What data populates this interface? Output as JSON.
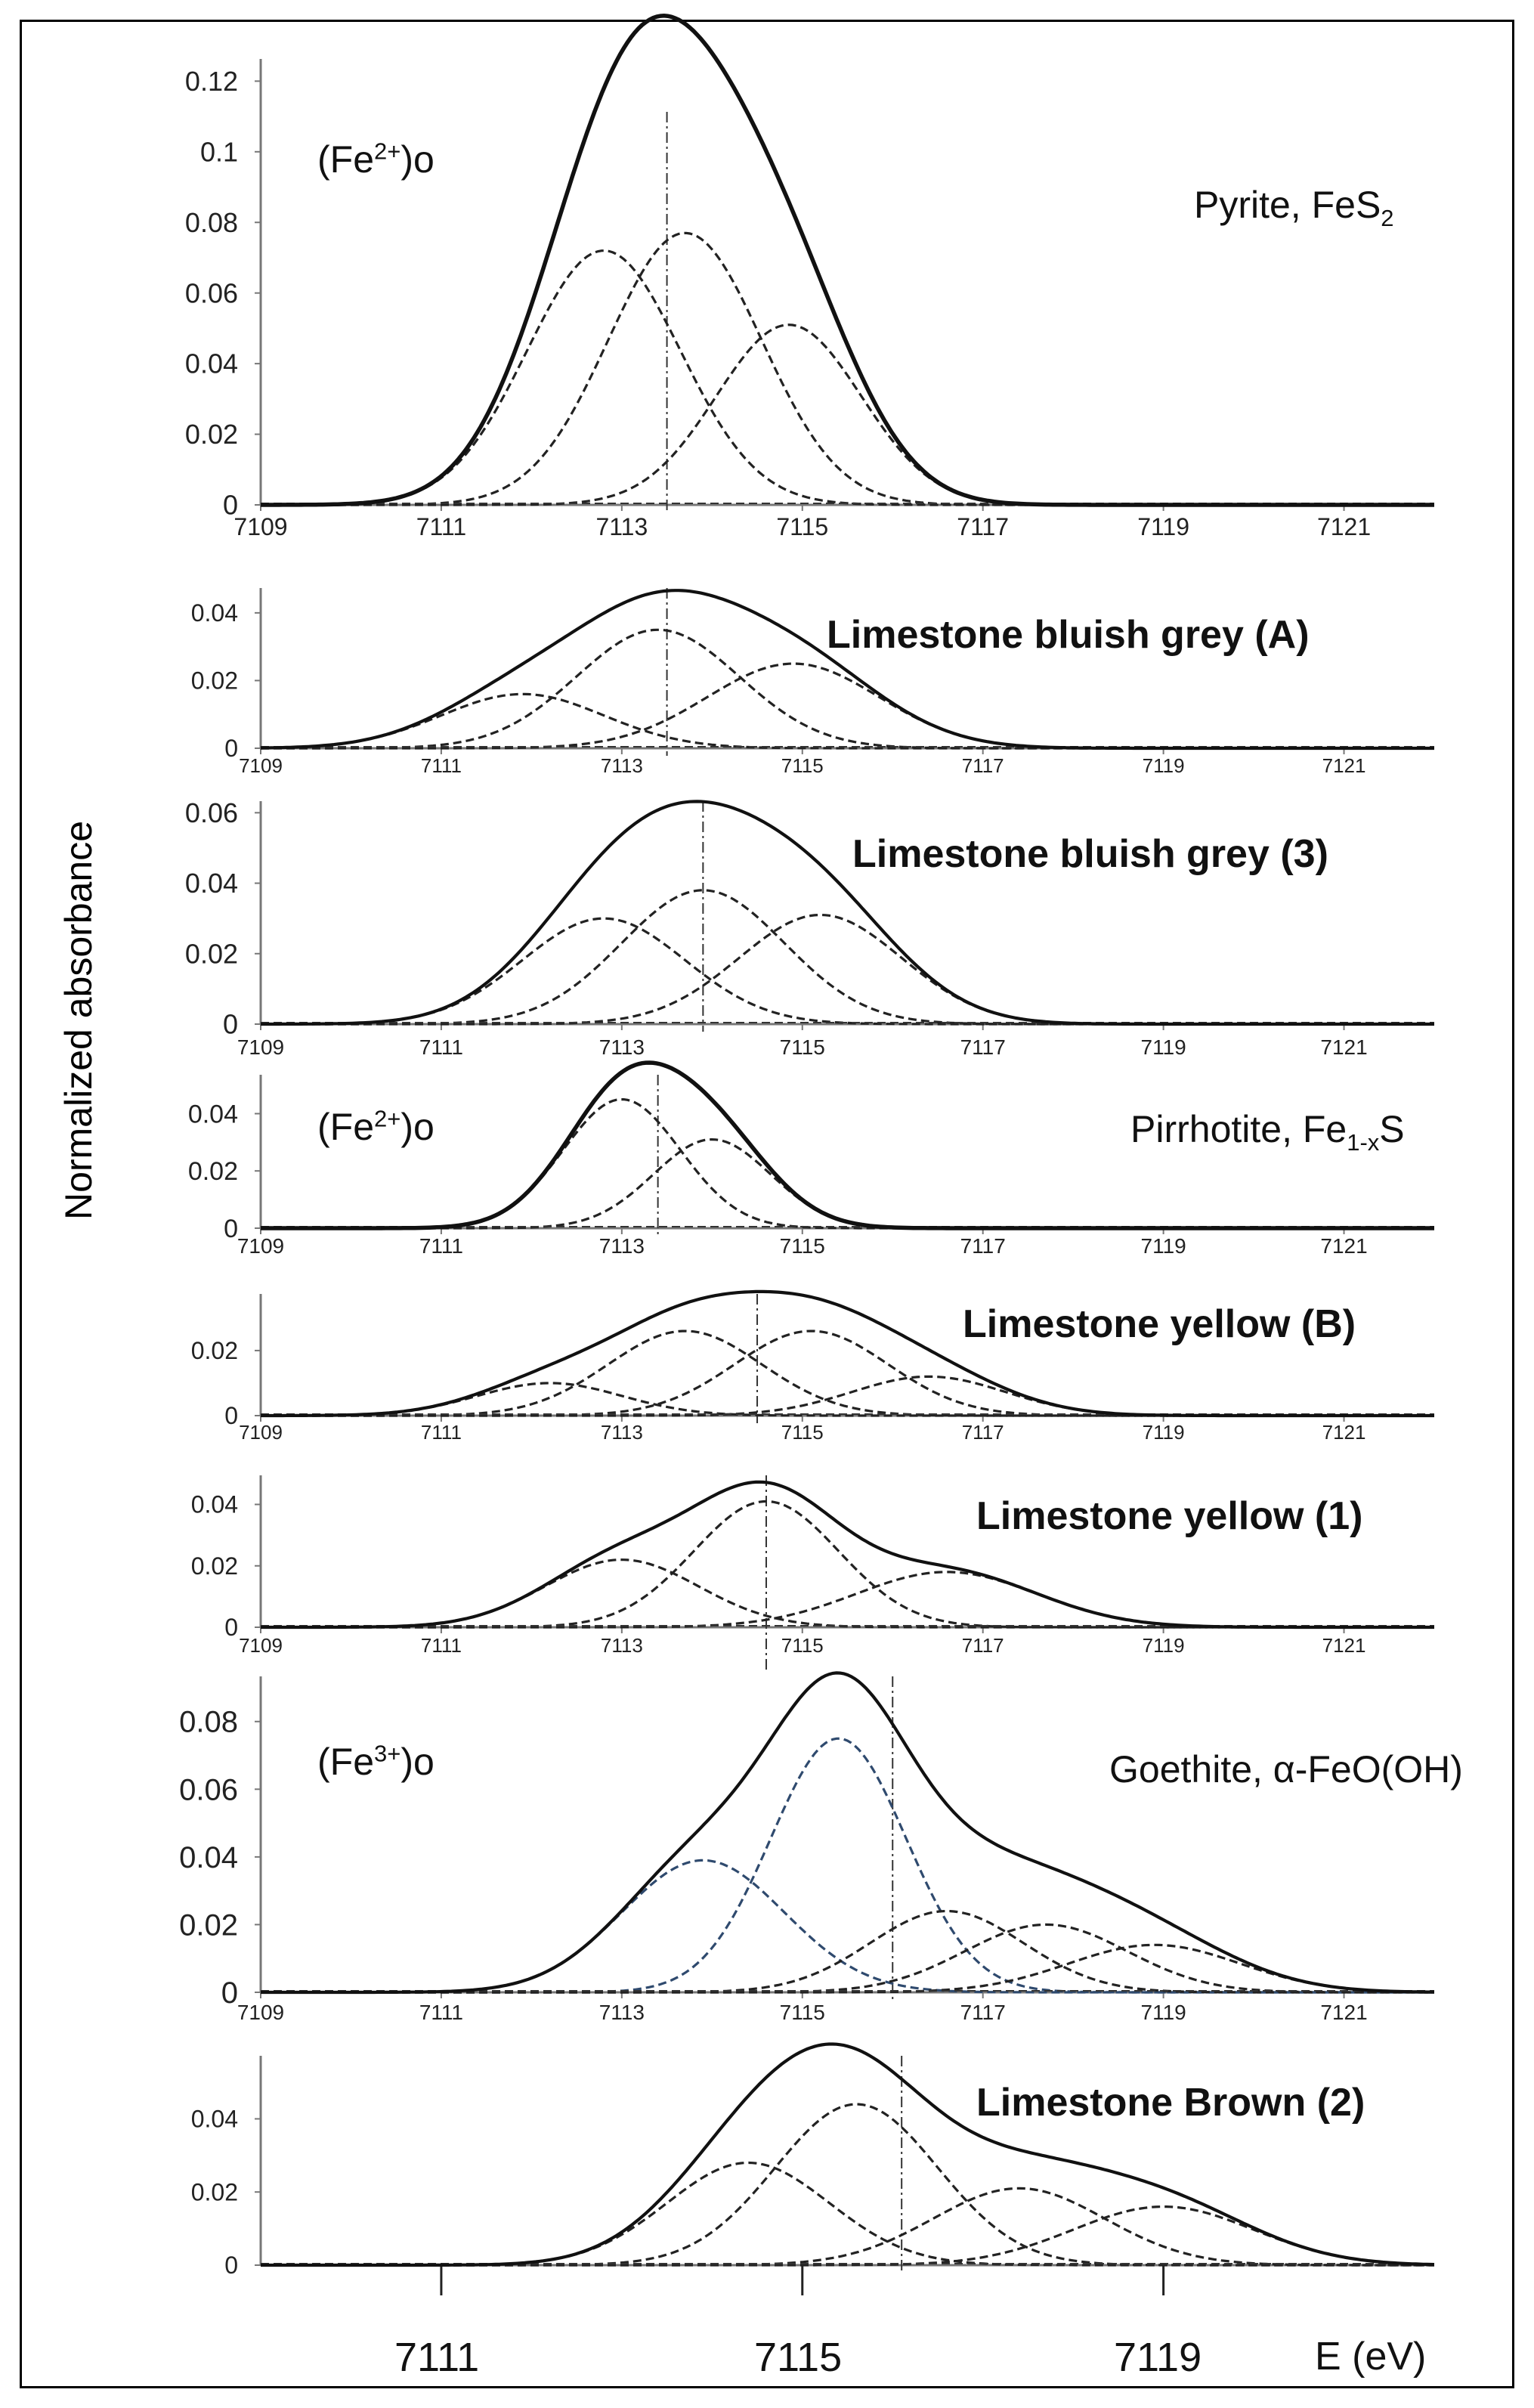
{
  "figure": {
    "ylabel": "Normalized absorbance",
    "xlabel": "E (eV)",
    "bottom_ticks": [
      "7111",
      "7115",
      "7119"
    ]
  },
  "chart_data": [
    {
      "type": "line",
      "title_main": "Pyrite, ",
      "title_formula": "FeS",
      "title_sub": "2",
      "annotation": {
        "base": "(Fe",
        "sup": "2+",
        "tail": ")o"
      },
      "x_ticks": [
        "7109",
        "7111",
        "7113",
        "7115",
        "7117",
        "7119",
        "7121"
      ],
      "y_ticks": [
        "0",
        "0.02",
        "0.04",
        "0.06",
        "0.08",
        "0.1",
        "0.12"
      ],
      "xlim": [
        7109,
        7122
      ],
      "ylim": [
        0,
        0.125
      ],
      "marker_x": 7113.5,
      "components": [
        {
          "center": 7112.8,
          "height": 0.072,
          "sigma": 0.85,
          "color": "#222222"
        },
        {
          "center": 7113.7,
          "height": 0.077,
          "sigma": 0.85,
          "color": "#222222"
        },
        {
          "center": 7114.85,
          "height": 0.051,
          "sigma": 0.8,
          "color": "#222222"
        }
      ]
    },
    {
      "type": "line",
      "title": "Limestone bluish grey  (A)",
      "x_ticks": [
        "7109",
        "7111",
        "7113",
        "7115",
        "7117",
        "7119",
        "7121"
      ],
      "y_ticks": [
        "0",
        "0.02",
        "0.04"
      ],
      "xlim": [
        7109,
        7122
      ],
      "ylim": [
        0,
        0.046
      ],
      "marker_x": 7113.5,
      "components": [
        {
          "center": 7111.9,
          "height": 0.016,
          "sigma": 0.9,
          "color": "#222222"
        },
        {
          "center": 7113.4,
          "height": 0.035,
          "sigma": 0.9,
          "color": "#222222"
        },
        {
          "center": 7114.9,
          "height": 0.025,
          "sigma": 0.95,
          "color": "#222222"
        }
      ]
    },
    {
      "type": "line",
      "title": "Limestone bluish grey  (3)",
      "x_ticks": [
        "7109",
        "7111",
        "7113",
        "7115",
        "7117",
        "7119",
        "7121"
      ],
      "y_ticks": [
        "0",
        "0.02",
        "0.04",
        "0.06"
      ],
      "xlim": [
        7109,
        7122
      ],
      "ylim": [
        0,
        0.062
      ],
      "marker_x": 7113.9,
      "components": [
        {
          "center": 7112.8,
          "height": 0.03,
          "sigma": 0.9,
          "color": "#222222"
        },
        {
          "center": 7113.9,
          "height": 0.038,
          "sigma": 0.9,
          "color": "#222222"
        },
        {
          "center": 7115.2,
          "height": 0.031,
          "sigma": 0.9,
          "color": "#222222"
        }
      ]
    },
    {
      "type": "line",
      "title_main": "Pirrhotite, Fe",
      "title_sub": "1-x",
      "title_tail": "S",
      "annotation": {
        "base": "(Fe",
        "sup": "2+",
        "tail": ")o"
      },
      "x_ticks": [
        "7109",
        "7111",
        "7113",
        "7115",
        "7117",
        "7119",
        "7121"
      ],
      "y_ticks": [
        "0",
        "0.02",
        "0.04"
      ],
      "xlim": [
        7109,
        7122
      ],
      "ylim": [
        0,
        0.052
      ],
      "marker_x": 7113.4,
      "components": [
        {
          "center": 7113.0,
          "height": 0.045,
          "sigma": 0.65,
          "color": "#222222"
        },
        {
          "center": 7114.0,
          "height": 0.031,
          "sigma": 0.65,
          "color": "#222222"
        }
      ]
    },
    {
      "type": "line",
      "title": "Limestone yellow (B)",
      "x_ticks": [
        "7109",
        "7111",
        "7113",
        "7115",
        "7117",
        "7119",
        "7121"
      ],
      "y_ticks": [
        "0",
        "0.02"
      ],
      "xlim": [
        7109,
        7122
      ],
      "ylim": [
        0,
        0.036
      ],
      "marker_x": 7114.5,
      "components": [
        {
          "center": 7112.2,
          "height": 0.01,
          "sigma": 0.8,
          "color": "#222222"
        },
        {
          "center": 7113.7,
          "height": 0.026,
          "sigma": 0.85,
          "color": "#222222"
        },
        {
          "center": 7115.1,
          "height": 0.026,
          "sigma": 0.85,
          "color": "#222222"
        },
        {
          "center": 7116.4,
          "height": 0.012,
          "sigma": 0.85,
          "color": "#222222"
        }
      ]
    },
    {
      "type": "line",
      "title": "Limestone yellow (1)",
      "x_ticks": [
        "7109",
        "7111",
        "7113",
        "7115",
        "7117",
        "7119",
        "7121"
      ],
      "y_ticks": [
        "0",
        "0.02",
        "0.04"
      ],
      "xlim": [
        7109,
        7122
      ],
      "ylim": [
        0,
        0.048
      ],
      "marker_x": 7114.6,
      "components": [
        {
          "center": 7113.0,
          "height": 0.022,
          "sigma": 0.85,
          "color": "#222222"
        },
        {
          "center": 7114.6,
          "height": 0.041,
          "sigma": 0.8,
          "color": "#222222"
        },
        {
          "center": 7116.6,
          "height": 0.018,
          "sigma": 1.0,
          "color": "#222222"
        }
      ]
    },
    {
      "type": "line",
      "title_main": "Goethite, α-FeO(OH)",
      "annotation": {
        "base": "(Fe",
        "sup": "3+",
        "tail": ")o"
      },
      "x_ticks": [
        "7109",
        "7111",
        "7113",
        "7115",
        "7117",
        "7119",
        "7121"
      ],
      "y_ticks": [
        "0",
        "0.02",
        "0.04",
        "0.06",
        "0.08"
      ],
      "xlim": [
        7109,
        7122
      ],
      "ylim": [
        0,
        0.092
      ],
      "marker_x": 7116.0,
      "components": [
        {
          "center": 7113.9,
          "height": 0.039,
          "sigma": 0.9,
          "color": "#2f4a6e"
        },
        {
          "center": 7115.4,
          "height": 0.075,
          "sigma": 0.75,
          "color": "#2f4a6e"
        },
        {
          "center": 7116.6,
          "height": 0.024,
          "sigma": 0.85,
          "color": "#222222"
        },
        {
          "center": 7117.7,
          "height": 0.02,
          "sigma": 0.9,
          "color": "#222222"
        },
        {
          "center": 7118.9,
          "height": 0.014,
          "sigma": 0.95,
          "color": "#222222"
        }
      ]
    },
    {
      "type": "line",
      "title": "Limestone Brown (2)",
      "y_ticks": [
        "0",
        "0.02",
        "0.04"
      ],
      "xlim": [
        7109,
        7122
      ],
      "ylim": [
        0,
        0.056
      ],
      "marker_x": 7116.1,
      "components": [
        {
          "center": 7114.4,
          "height": 0.028,
          "sigma": 0.9,
          "color": "#222222"
        },
        {
          "center": 7115.6,
          "height": 0.044,
          "sigma": 0.9,
          "color": "#222222"
        },
        {
          "center": 7117.4,
          "height": 0.021,
          "sigma": 0.95,
          "color": "#222222"
        },
        {
          "center": 7119.0,
          "height": 0.016,
          "sigma": 1.0,
          "color": "#222222"
        }
      ]
    }
  ]
}
